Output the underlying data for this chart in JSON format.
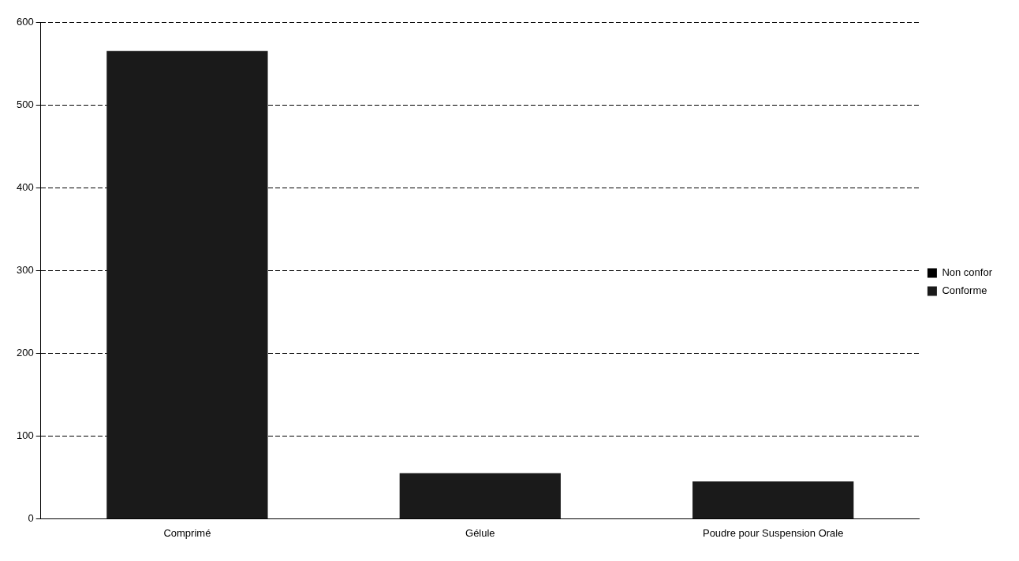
{
  "chart_data": {
    "type": "bar",
    "stacked": true,
    "categories": [
      "Comprimé",
      "Gélule",
      "Poudre pour Suspension Orale"
    ],
    "series": [
      {
        "name": "Non confor",
        "color": "#000000",
        "values": [
          0,
          0,
          0
        ]
      },
      {
        "name": "Conforme",
        "color": "#1a1a1a",
        "values": [
          565,
          55,
          45
        ]
      }
    ],
    "ylim": [
      0,
      600
    ],
    "yticks": [
      0,
      100,
      200,
      300,
      400,
      500,
      600
    ],
    "grid": "y",
    "legend": "right"
  }
}
